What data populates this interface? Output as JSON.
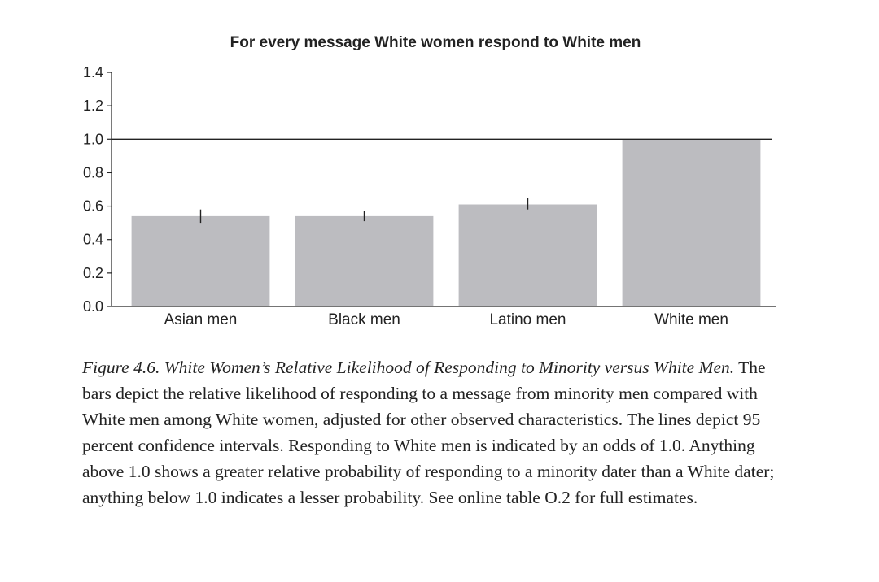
{
  "chart_data": {
    "type": "bar",
    "title": "For every message White women respond to White men",
    "xlabel": "",
    "ylabel": "",
    "categories": [
      "Asian men",
      "Black men",
      "Latino men",
      "White men"
    ],
    "values": [
      0.54,
      0.54,
      0.61,
      1.0
    ],
    "error_bars": [
      [
        0.5,
        0.58
      ],
      [
        0.51,
        0.57
      ],
      [
        0.58,
        0.65
      ],
      null
    ],
    "ylim": [
      0,
      1.4
    ],
    "yticks": [
      "0.0",
      "0.2",
      "0.4",
      "0.6",
      "0.8",
      "1.0",
      "1.2",
      "1.4"
    ],
    "reference_line": 1.0,
    "grid": false,
    "colors": {
      "bar": "#bcbcc0",
      "axis": "#222222",
      "errorbar": "#222222"
    }
  },
  "caption": {
    "figure_label": "Figure 4.6. White Women’s Relative Likelihood of Responding to Minority versus White Men.",
    "text": "The bars depict the relative likelihood of responding to a message from minority men compared with White men among White women, adjusted for other observed characteristics. The lines depict 95 percent confidence intervals. Responding to White men is indicated by an odds of 1.0. Anything above 1.0 shows a greater relative probability of responding to a minority dater than a White dater; anything below 1.0 indicates a lesser probability. See online table O.2 for full estimates."
  }
}
